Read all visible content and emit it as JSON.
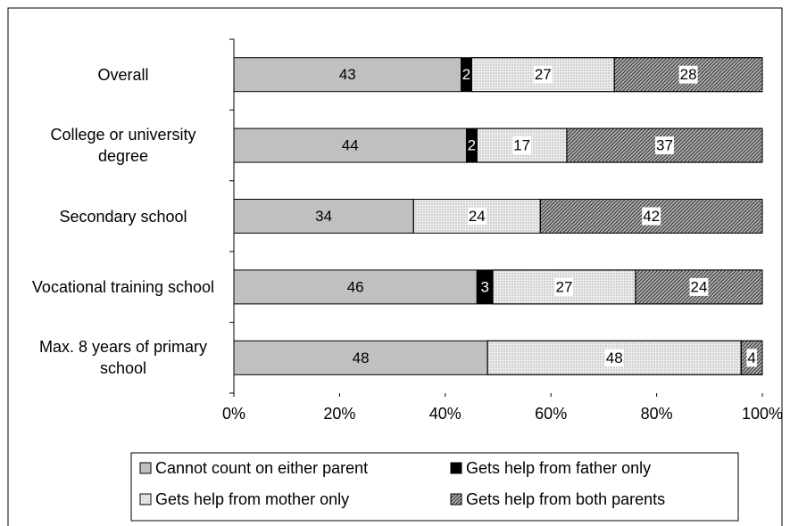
{
  "chart_data": {
    "type": "stacked-bar-horizontal",
    "categories": [
      "Overall",
      "College or university degree",
      "Secondary school",
      "Vocational training school",
      "Max. 8 years of primary school"
    ],
    "series": [
      {
        "name": "Cannot count on either parent",
        "color": "#c0c0c0",
        "values": [
          43,
          44,
          34,
          46,
          48
        ]
      },
      {
        "name": "Gets help from father only",
        "color": "#000000",
        "values": [
          2,
          2,
          0,
          3,
          0
        ]
      },
      {
        "name": "Gets help from mother only",
        "color": "#eeeeee",
        "pattern": "dots",
        "values": [
          27,
          17,
          24,
          27,
          48
        ]
      },
      {
        "name": "Gets help from both parents",
        "color": "#b0b0b0",
        "pattern": "hatch",
        "values": [
          28,
          37,
          42,
          24,
          4
        ]
      }
    ],
    "xlim": [
      0,
      100
    ],
    "xticks": [
      {
        "value": 0,
        "label": "0%"
      },
      {
        "value": 20,
        "label": "20%"
      },
      {
        "value": 40,
        "label": "40%"
      },
      {
        "value": 60,
        "label": "60%"
      },
      {
        "value": 80,
        "label": "80%"
      },
      {
        "value": 100,
        "label": "100%"
      }
    ],
    "legend": "bottom"
  }
}
